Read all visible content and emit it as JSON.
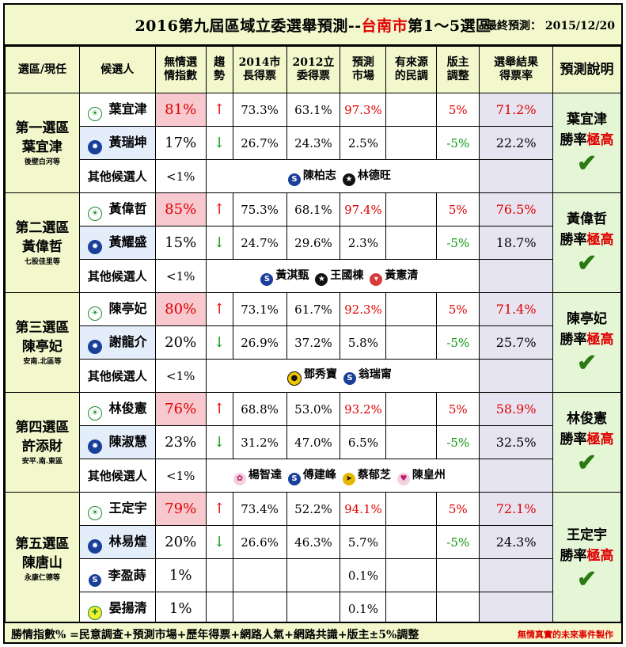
{
  "title": {
    "main": "2016第九屆區域立委選舉預測--",
    "city": "台南市",
    "districts": "第1～5選區",
    "date_label": "最終預測：",
    "date": "2015/12/20"
  },
  "headers": {
    "district": "選區/現任",
    "candidate": "候選人",
    "index": "無情選\n情指數",
    "trend": "趨\n勢",
    "mayor2014": "2014市\n長得票",
    "legis2012": "2012立\n委得票",
    "market": "預測\n市場",
    "poll": "有來源\n的民調",
    "moderator": "版主\n調整",
    "result": "選舉結果\n得票率",
    "prediction": "預測說明"
  },
  "other_label": "其他候選人",
  "districts": [
    {
      "name": "第一選區",
      "incumbent": "葉宜津",
      "area": "後壁白河等",
      "prediction": {
        "winner": "葉宜津",
        "text_a": "勝率",
        "text_b": "極高"
      },
      "candidates": [
        {
          "party_icon": "dpp-icon",
          "name": "葉宜津",
          "index": "81%",
          "trend": "↑",
          "mayor": "73.3%",
          "legis": "63.1%",
          "market": "97.3%",
          "poll": "",
          "adj": "5%",
          "result": "71.2%"
        },
        {
          "party_icon": "kmt-icon",
          "name": "黃瑞坤",
          "index": "17%",
          "trend": "↓",
          "mayor": "26.7%",
          "legis": "24.3%",
          "market": "2.5%",
          "poll": "",
          "adj": "-5%",
          "result": "22.2%"
        }
      ],
      "others_pct": "<1%",
      "others": [
        {
          "icon": "trust-party-icon",
          "name": "陳柏志"
        },
        {
          "icon": "independent-icon",
          "name": "林德旺"
        }
      ]
    },
    {
      "name": "第二選區",
      "incumbent": "黃偉哲",
      "area": "七股佳里等",
      "prediction": {
        "winner": "黃偉哲",
        "text_a": "勝率",
        "text_b": "極高"
      },
      "candidates": [
        {
          "party_icon": "dpp-icon",
          "name": "黃偉哲",
          "index": "85%",
          "trend": "↑",
          "mayor": "75.3%",
          "legis": "68.1%",
          "market": "97.4%",
          "poll": "",
          "adj": "5%",
          "result": "76.5%"
        },
        {
          "party_icon": "kmt-icon",
          "name": "黃耀盛",
          "index": "15%",
          "trend": "↓",
          "mayor": "24.7%",
          "legis": "29.6%",
          "market": "2.3%",
          "poll": "",
          "adj": "-5%",
          "result": "18.7%"
        }
      ],
      "others_pct": "<1%",
      "others": [
        {
          "icon": "trust-party-icon",
          "name": "黃淇甄"
        },
        {
          "icon": "independent-icon",
          "name": "王國棟"
        },
        {
          "icon": "red-party-icon",
          "name": "黃憲清"
        }
      ]
    },
    {
      "name": "第三選區",
      "incumbent": "陳亭妃",
      "area": "安南.北區等",
      "prediction": {
        "winner": "陳亭妃",
        "text_a": "勝率",
        "text_b": "極高"
      },
      "candidates": [
        {
          "party_icon": "dpp-icon",
          "name": "陳亭妃",
          "index": "80%",
          "trend": "↑",
          "mayor": "73.1%",
          "legis": "61.7%",
          "market": "92.3%",
          "poll": "",
          "adj": "5%",
          "result": "71.4%"
        },
        {
          "party_icon": "kmt-icon",
          "name": "謝龍介",
          "index": "20%",
          "trend": "↓",
          "mayor": "26.9%",
          "legis": "37.2%",
          "market": "5.8%",
          "poll": "",
          "adj": "-5%",
          "result": "25.7%"
        }
      ],
      "others_pct": "<1%",
      "others": [
        {
          "icon": "yellow-party-icon",
          "name": "鄧秀寶"
        },
        {
          "icon": "trust-party-icon",
          "name": "翁瑞甯"
        }
      ]
    },
    {
      "name": "第四選區",
      "incumbent": "許添財",
      "area": "安平.南.東區",
      "prediction": {
        "winner": "林俊憲",
        "text_a": "勝率",
        "text_b": "極高"
      },
      "candidates": [
        {
          "party_icon": "dpp-icon",
          "name": "林俊憲",
          "index": "76%",
          "trend": "↑",
          "mayor": "68.8%",
          "legis": "53.0%",
          "market": "93.2%",
          "poll": "",
          "adj": "5%",
          "result": "58.9%"
        },
        {
          "party_icon": "kmt-icon",
          "name": "陳淑慧",
          "index": "23%",
          "trend": "↓",
          "mayor": "31.2%",
          "legis": "47.0%",
          "market": "6.5%",
          "poll": "",
          "adj": "-5%",
          "result": "32.5%"
        }
      ],
      "others_pct": "<1%",
      "others": [
        {
          "icon": "flower-party-icon",
          "name": "楊智達"
        },
        {
          "icon": "trust-party-icon",
          "name": "傅建峰"
        },
        {
          "icon": "pfp-party-icon",
          "name": "蔡郁芝"
        },
        {
          "icon": "heart-party-icon",
          "name": "陳皇州"
        }
      ]
    },
    {
      "name": "第五選區",
      "incumbent": "陳唐山",
      "area": "永康仁德等",
      "prediction": {
        "winner": "王定宇",
        "text_a": "勝率",
        "text_b": "極高"
      },
      "candidates": [
        {
          "party_icon": "dpp-icon",
          "name": "王定宇",
          "index": "79%",
          "trend": "↑",
          "mayor": "73.4%",
          "legis": "52.2%",
          "market": "94.1%",
          "poll": "",
          "adj": "5%",
          "result": "72.1%"
        },
        {
          "party_icon": "kmt-icon",
          "name": "林易煌",
          "index": "20%",
          "trend": "↓",
          "mayor": "26.6%",
          "legis": "46.3%",
          "market": "5.7%",
          "poll": "",
          "adj": "-5%",
          "result": "24.3%"
        },
        {
          "party_icon": "trust-party-icon",
          "name": "李盈蒔",
          "index": "1%",
          "trend": "",
          "mayor": "",
          "legis": "",
          "market": "0.1%",
          "poll": "",
          "adj": "",
          "result": ""
        },
        {
          "party_icon": "green-party-icon",
          "name": "晏揚清",
          "index": "1%",
          "trend": "",
          "mayor": "",
          "legis": "",
          "market": "0.1%",
          "poll": "",
          "adj": "",
          "result": ""
        }
      ]
    }
  ],
  "footer": {
    "formula": "勝情指數% =民意調查+預測市場+歷年得票+網路人氣+網路共識+版主±5%調整",
    "credit": "無情真實的未來事件製作"
  },
  "colors": {
    "header_bg": "#f2f7cc",
    "index_high_bg": "#f7c8cd",
    "kmt_row_bg": "#e3eefa",
    "result_bg": "#e6e4f0",
    "prediction_bg": "#e5f6d6",
    "up_red": "#e00000",
    "down_green": "#0a9a0a"
  }
}
